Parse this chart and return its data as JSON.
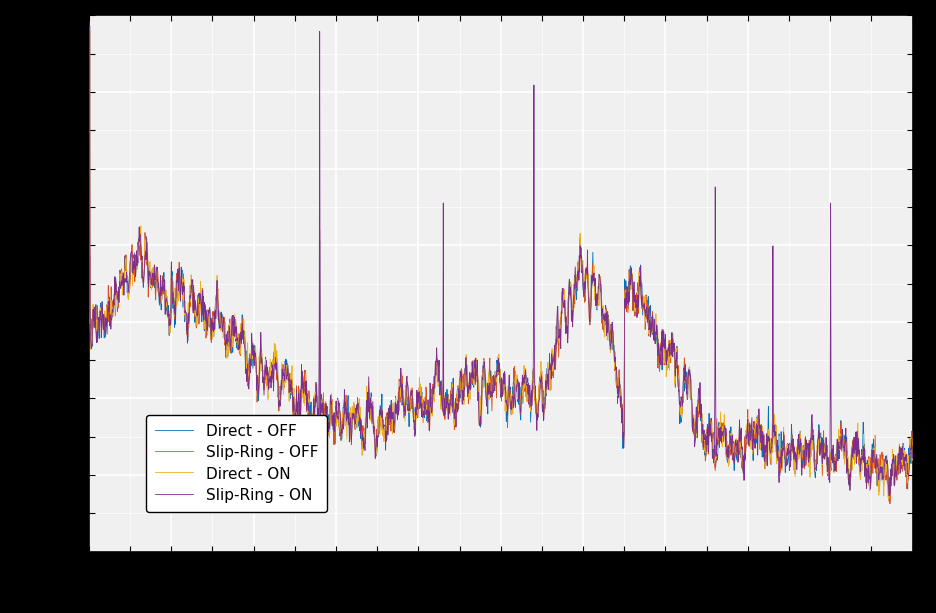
{
  "title": "",
  "xlabel": "",
  "ylabel": "",
  "legend_labels": [
    "Direct - OFF",
    "Slip-Ring - OFF",
    "Direct - ON",
    "Slip-Ring - ON"
  ],
  "colors": [
    "#0072BD",
    "#D95319",
    "#EDB120",
    "#7E2F8E"
  ],
  "linewidth": 0.6,
  "background_color": "#F0F0F0",
  "grid_color": "#FFFFFF",
  "grid_linewidth": 1.2,
  "fig_bg_color": "#000000",
  "n_points": 2000,
  "ylim": [
    0.0,
    1.0
  ],
  "legend_fontsize": 11
}
